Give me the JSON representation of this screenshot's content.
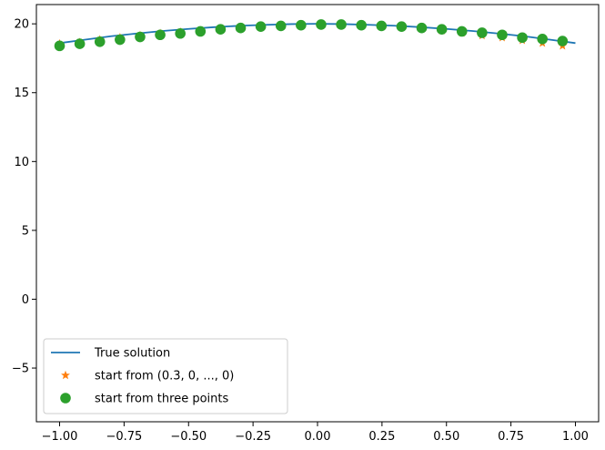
{
  "chart_data": {
    "type": "line",
    "title": "",
    "xlabel": "",
    "ylabel": "",
    "xlim": [
      -1.09,
      1.09
    ],
    "ylim": [
      -8.9,
      21.4
    ],
    "xticks": [
      -1.0,
      -0.75,
      -0.5,
      -0.25,
      0.0,
      0.25,
      0.5,
      0.75,
      1.0
    ],
    "xtick_labels": [
      "−1.00",
      "−0.75",
      "−0.50",
      "−0.25",
      "0.00",
      "0.25",
      "0.50",
      "0.75",
      "1.00"
    ],
    "yticks": [
      -5,
      0,
      5,
      10,
      15,
      20
    ],
    "ytick_labels": [
      "−5",
      "0",
      "5",
      "10",
      "15",
      "20"
    ],
    "grid": false,
    "legend_position": "lower-left",
    "series": [
      {
        "name": "True solution",
        "kind": "line",
        "color": "#1f77b4",
        "x": [
          -1.0,
          -0.9,
          -0.8,
          -0.7,
          -0.6,
          -0.5,
          -0.4,
          -0.3,
          -0.2,
          -0.1,
          0.0,
          0.1,
          0.2,
          0.3,
          0.4,
          0.5,
          0.6,
          0.7,
          0.8,
          0.9,
          1.0
        ],
        "y": [
          18.6,
          18.85,
          19.1,
          19.3,
          19.48,
          19.63,
          19.76,
          19.86,
          19.93,
          19.98,
          20.0,
          19.98,
          19.93,
          19.86,
          19.76,
          19.63,
          19.48,
          19.3,
          19.1,
          18.85,
          18.6
        ]
      },
      {
        "name": "start from (0.3, 0, ..., 0)",
        "kind": "scatter",
        "marker": "star",
        "color": "#ff7f0e",
        "x": [
          -1.0,
          -0.922,
          -0.844,
          -0.766,
          -0.688,
          -0.61,
          -0.532,
          -0.454,
          -0.376,
          -0.298,
          -0.22,
          -0.142,
          -0.064,
          0.014,
          0.092,
          0.17,
          0.248,
          0.326,
          0.404,
          0.482,
          0.56,
          0.638,
          0.716,
          0.794,
          0.872,
          0.95
        ],
        "y": [
          18.55,
          18.65,
          18.85,
          19.0,
          19.15,
          19.3,
          19.4,
          19.5,
          19.65,
          19.75,
          19.8,
          19.85,
          19.85,
          19.9,
          19.9,
          19.85,
          19.8,
          19.75,
          19.65,
          19.5,
          19.35,
          19.15,
          19.0,
          18.8,
          18.6,
          18.4
        ]
      },
      {
        "name": "start from three points",
        "kind": "scatter",
        "marker": "circle",
        "color": "#2ca02c",
        "x": [
          -1.0,
          -0.922,
          -0.844,
          -0.766,
          -0.688,
          -0.61,
          -0.532,
          -0.454,
          -0.376,
          -0.298,
          -0.22,
          -0.142,
          -0.064,
          0.014,
          0.092,
          0.17,
          0.248,
          0.326,
          0.404,
          0.482,
          0.56,
          0.638,
          0.716,
          0.794,
          0.872,
          0.95
        ],
        "y": [
          18.4,
          18.55,
          18.7,
          18.85,
          19.05,
          19.2,
          19.3,
          19.45,
          19.6,
          19.7,
          19.8,
          19.85,
          19.9,
          19.95,
          19.95,
          19.9,
          19.85,
          19.8,
          19.7,
          19.6,
          19.45,
          19.35,
          19.2,
          19.0,
          18.9,
          18.75
        ]
      }
    ]
  }
}
